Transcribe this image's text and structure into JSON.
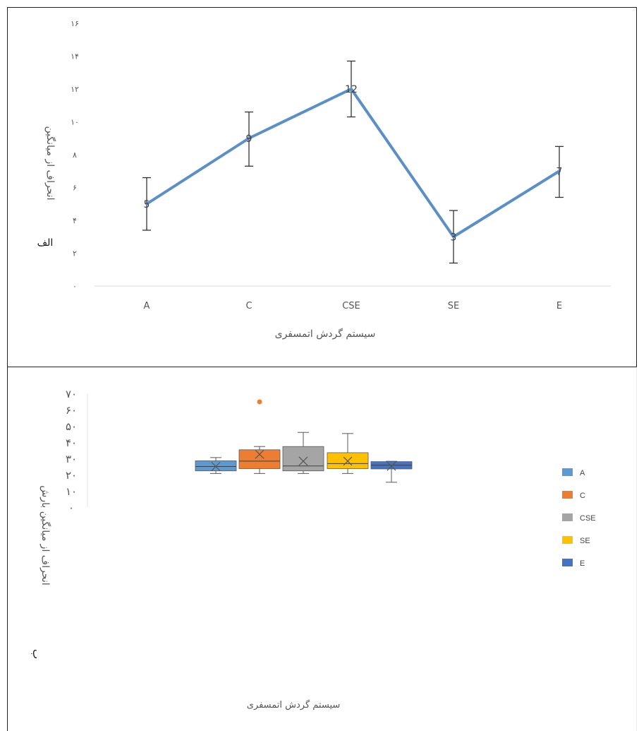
{
  "chart_data": [
    {
      "type": "line",
      "panel_label": "الف",
      "xlabel": "سیستم گردش اتمسفری",
      "ylabel": "انحراف از میانگین",
      "categories": [
        "A",
        "C",
        "CSE",
        "SE",
        "E"
      ],
      "values": [
        5,
        9,
        12,
        3,
        7
      ],
      "data_labels": [
        "5",
        "9",
        "12",
        "3",
        "7"
      ],
      "error_low": [
        3.4,
        7.3,
        10.3,
        1.4,
        5.4
      ],
      "error_high": [
        6.6,
        10.6,
        13.7,
        4.6,
        8.5
      ],
      "ylim": [
        0,
        16
      ],
      "y_ticks": [
        0,
        2,
        4,
        6,
        8,
        10,
        12,
        14,
        16
      ],
      "y_tick_labels": [
        "۰",
        "۲",
        "۴",
        "۶",
        "۸",
        "۱۰",
        "۱۲",
        "۱۴",
        "۱۶"
      ],
      "color": "#5b8fc7",
      "grid": false
    },
    {
      "type": "box",
      "panel_label": "ب",
      "xlabel": "سیستم گردش اتمسفری",
      "ylabel": "انحراف از میانگین بارش",
      "ylim": [
        0,
        70
      ],
      "y_ticks": [
        0,
        10,
        20,
        30,
        40,
        50,
        60,
        70
      ],
      "y_tick_labels": [
        "۰",
        "۱۰",
        "۲۰",
        "۳۰",
        "۴۰",
        "۵۰",
        "۶۰",
        "۷۰"
      ],
      "legend_position": "right",
      "grid": false,
      "series": [
        {
          "name": "A",
          "color": "#5b9bd5",
          "min": 20.7,
          "q1": 22.3,
          "median": 25,
          "q3": 28.5,
          "max": 30.5,
          "mean": 25
        },
        {
          "name": "C",
          "color": "#ed7d31",
          "min": 20.7,
          "q1": 23.7,
          "median": 28.3,
          "q3": 35.3,
          "max": 37.3,
          "mean": 32.5,
          "outliers": [
            64.8
          ]
        },
        {
          "name": "CSE",
          "color": "#a5a5a5",
          "min": 20.7,
          "q1": 22.3,
          "median": 25.3,
          "q3": 37.3,
          "max": 46,
          "mean": 28.3
        },
        {
          "name": "SE",
          "color": "#ffc000",
          "min": 20.7,
          "q1": 23.7,
          "median": 26.8,
          "q3": 33.5,
          "max": 45.3,
          "mean": 28.3
        },
        {
          "name": "E",
          "color": "#4472c4",
          "min": 15.3,
          "q1": 23.5,
          "median": 25.8,
          "q3": 28,
          "max": 28.2,
          "mean": 25.2
        }
      ]
    }
  ]
}
